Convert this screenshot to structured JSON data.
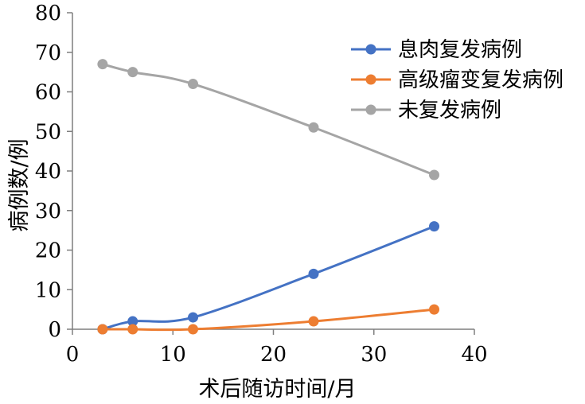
{
  "chart_data": {
    "type": "line",
    "title": "",
    "xlabel": "术后随访时间/月",
    "ylabel": "病例数/例",
    "xlim": [
      0,
      40
    ],
    "ylim": [
      0,
      80
    ],
    "xticks": [
      "0",
      "10",
      "20",
      "30",
      "40"
    ],
    "yticks": [
      "0",
      "10",
      "20",
      "30",
      "40",
      "50",
      "60",
      "70",
      "80"
    ],
    "grid": false,
    "legend_position": "top-right",
    "x": [
      3,
      6,
      12,
      24,
      36
    ],
    "series": [
      {
        "name": "息肉复发病例",
        "color": "#4472C4",
        "values": [
          0,
          2,
          3,
          14,
          26
        ]
      },
      {
        "name": "高级瘤变复发病例",
        "color": "#ED7D31",
        "values": [
          0,
          0,
          0,
          2,
          5
        ]
      },
      {
        "name": "未复发病例",
        "color": "#A5A5A5",
        "values": [
          67,
          65,
          62,
          51,
          39
        ]
      }
    ]
  }
}
